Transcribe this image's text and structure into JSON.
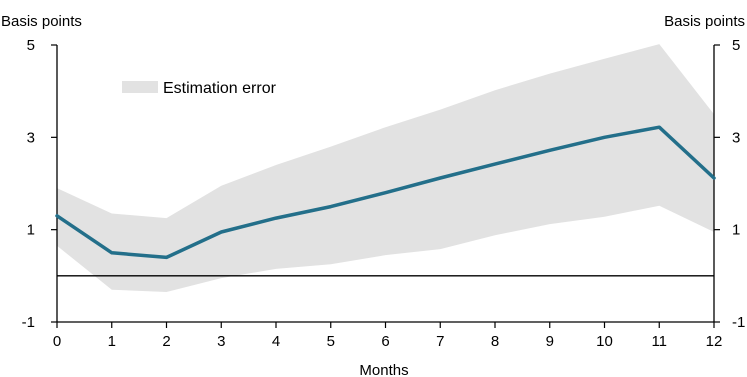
{
  "chart_data": {
    "type": "line",
    "title": "",
    "xlabel": "Months",
    "ylabel_left": "Basis points",
    "ylabel_right": "Basis points",
    "x": [
      0,
      1,
      2,
      3,
      4,
      5,
      6,
      7,
      8,
      9,
      10,
      11,
      12
    ],
    "xticks": [
      "0",
      "1",
      "2",
      "3",
      "4",
      "5",
      "6",
      "7",
      "8",
      "9",
      "10",
      "11",
      "12"
    ],
    "xlim": [
      0,
      12
    ],
    "ylim": [
      -1,
      5
    ],
    "yticks": [
      -1,
      1,
      3,
      5
    ],
    "zero_line": true,
    "grid": false,
    "legend": {
      "label": "Estimation error",
      "placement": "top-left",
      "color": "#e2e2e2"
    },
    "series": [
      {
        "values": [
          1.3,
          0.5,
          0.4,
          0.95,
          1.25,
          1.5,
          1.8,
          2.12,
          2.42,
          2.72,
          3.0,
          3.22,
          2.12
        ],
        "color": "#236f8a"
      }
    ],
    "band": {
      "name": "Estimation error",
      "color": "#e2e2e2",
      "upper": [
        1.9,
        1.35,
        1.25,
        1.95,
        2.4,
        2.8,
        3.22,
        3.6,
        4.02,
        4.38,
        4.7,
        5.02,
        3.5
      ],
      "lower": [
        0.65,
        -0.3,
        -0.35,
        -0.05,
        0.15,
        0.25,
        0.45,
        0.58,
        0.88,
        1.12,
        1.28,
        1.52,
        0.95
      ]
    }
  }
}
